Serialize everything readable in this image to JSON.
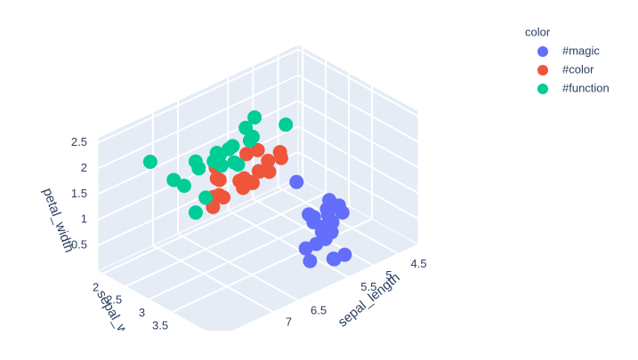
{
  "chart_data": {
    "type": "scatter3d",
    "x_label": "sepal_length",
    "y_label": "sepal_width",
    "z_label": "petal_width",
    "legend_title": "color",
    "legend_position": "top-right",
    "xlim": [
      4.1,
      8.1
    ],
    "ylim": [
      1.9,
      4.5
    ],
    "zlim": [
      0,
      2.6
    ],
    "xticks": [
      4.5,
      5,
      5.5,
      6.5,
      7
    ],
    "yticks": [
      2,
      2.5,
      3,
      3.5
    ],
    "zticks": [
      0.5,
      1,
      1.5,
      2,
      2.5
    ],
    "series": [
      {
        "name": "#magic",
        "color": "#636efa",
        "x": [
          5.1,
          4.9,
          4.7,
          4.6,
          5.0,
          5.4,
          4.6,
          5.0,
          4.4,
          4.9,
          5.4,
          4.8,
          4.8,
          4.3,
          5.8,
          5.7,
          5.4,
          5.1,
          5.7,
          5.0,
          4.5,
          5.2,
          5.5
        ],
        "y": [
          3.5,
          3.0,
          3.2,
          3.1,
          3.6,
          3.9,
          3.4,
          3.4,
          2.9,
          3.1,
          3.7,
          3.4,
          3.0,
          3.0,
          4.0,
          4.4,
          3.9,
          3.5,
          3.8,
          3.5,
          2.3,
          4.1,
          4.2
        ],
        "z": [
          0.2,
          0.2,
          0.2,
          0.2,
          0.2,
          0.4,
          0.3,
          0.2,
          0.2,
          0.1,
          0.2,
          0.2,
          0.1,
          0.1,
          0.2,
          0.4,
          0.4,
          0.3,
          0.3,
          0.6,
          0.3,
          0.1,
          0.2
        ]
      },
      {
        "name": "#color",
        "color": "#ef553b",
        "x": [
          7.0,
          6.4,
          6.9,
          5.5,
          6.5,
          5.7,
          6.3,
          4.9,
          6.6,
          5.2,
          5.0,
          5.9,
          6.0,
          6.1,
          5.6,
          6.7,
          5.9,
          6.1,
          6.3,
          5.7
        ],
        "y": [
          3.2,
          3.2,
          3.1,
          2.3,
          2.8,
          2.8,
          3.3,
          2.4,
          2.9,
          2.7,
          2.0,
          3.0,
          2.2,
          2.9,
          2.9,
          3.1,
          3.2,
          2.8,
          2.5,
          2.6
        ],
        "z": [
          1.4,
          1.5,
          1.5,
          1.3,
          1.5,
          1.3,
          1.6,
          1.0,
          1.3,
          1.4,
          1.0,
          1.5,
          1.0,
          1.4,
          1.3,
          1.4,
          1.8,
          1.3,
          1.5,
          1.0
        ]
      },
      {
        "name": "#function",
        "color": "#00cc96",
        "x": [
          6.3,
          5.8,
          7.1,
          6.3,
          6.5,
          7.6,
          4.9,
          7.3,
          6.7,
          7.2,
          6.5,
          6.4,
          6.8,
          5.7,
          5.8,
          7.7,
          7.7,
          6.0,
          6.9,
          7.9,
          6.7
        ],
        "y": [
          3.3,
          2.7,
          3.0,
          2.9,
          3.0,
          3.0,
          2.5,
          2.9,
          2.5,
          3.6,
          3.2,
          2.7,
          3.0,
          2.5,
          2.8,
          3.8,
          2.6,
          2.2,
          3.2,
          3.8,
          3.3
        ],
        "z": [
          2.5,
          1.9,
          2.1,
          1.8,
          2.2,
          2.1,
          1.7,
          1.8,
          1.8,
          2.5,
          2.0,
          1.9,
          2.1,
          2.0,
          2.4,
          2.2,
          2.3,
          1.5,
          2.3,
          2.0,
          2.5
        ]
      }
    ]
  }
}
